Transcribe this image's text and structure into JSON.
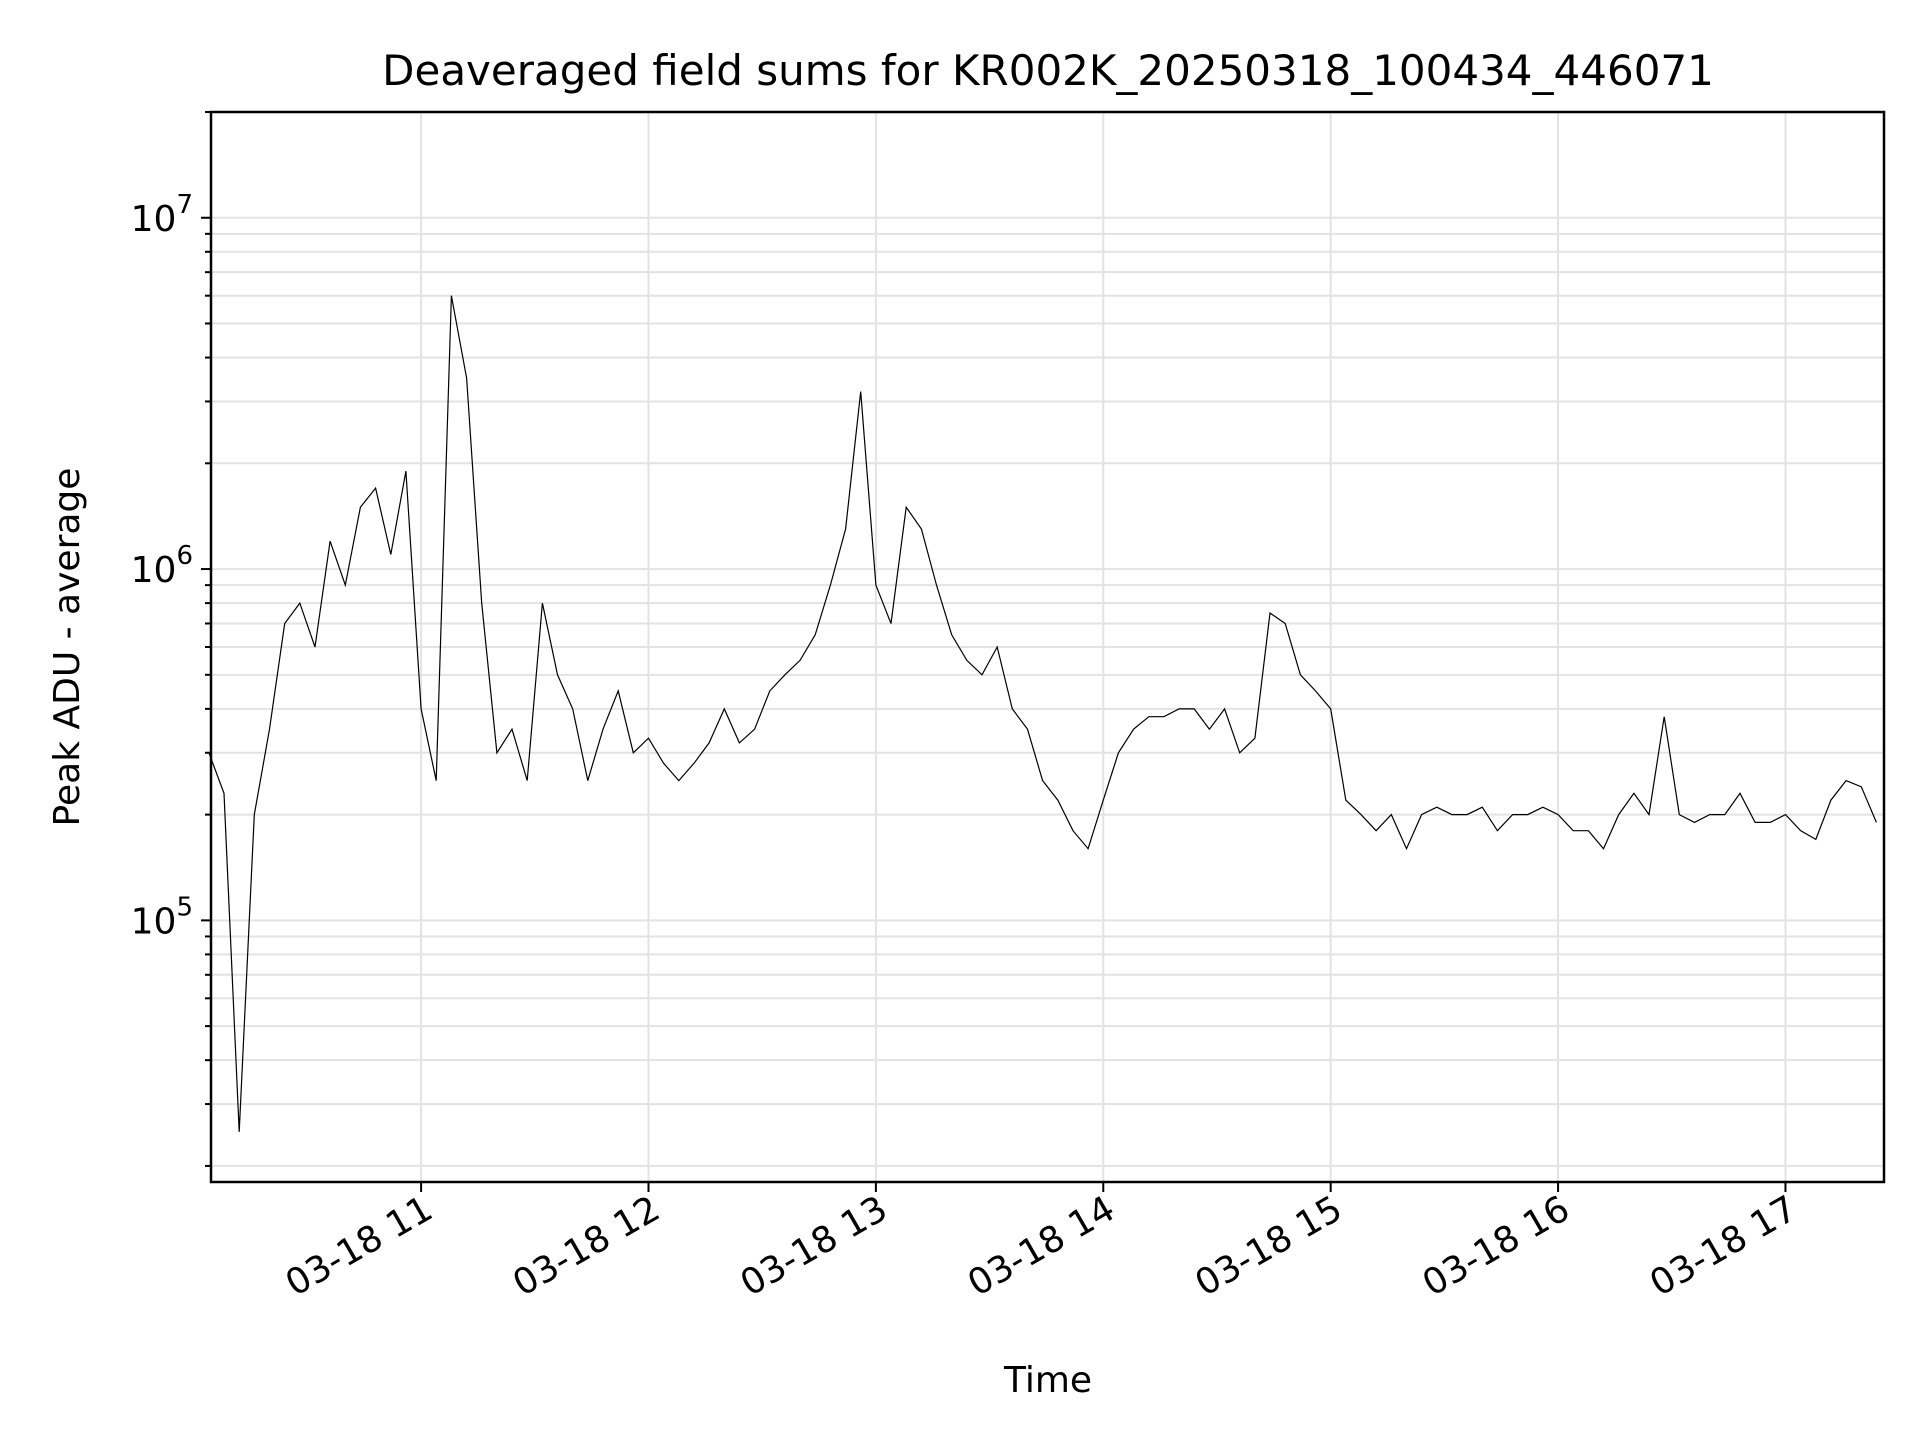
{
  "chart_data": {
    "type": "line",
    "title": "Deaveraged field sums for KR002K_20250318_100434_446071",
    "xlabel": "Time",
    "ylabel": "Peak ADU - average",
    "yscale": "log",
    "ylim": [
      18000,
      20000000
    ],
    "xlim": [
      "2025-03-18 10:04:34",
      "2025-03-18 17:26:00"
    ],
    "x_ticks": [
      {
        "value": "2025-03-18 11:00",
        "label": "03-18 11"
      },
      {
        "value": "2025-03-18 12:00",
        "label": "03-18 12"
      },
      {
        "value": "2025-03-18 13:00",
        "label": "03-18 13"
      },
      {
        "value": "2025-03-18 14:00",
        "label": "03-18 14"
      },
      {
        "value": "2025-03-18 15:00",
        "label": "03-18 15"
      },
      {
        "value": "2025-03-18 16:00",
        "label": "03-18 16"
      },
      {
        "value": "2025-03-18 17:00",
        "label": "03-18 17"
      }
    ],
    "y_ticks": [
      {
        "value": 100000,
        "base": "10",
        "exp": "5"
      },
      {
        "value": 1000000,
        "base": "10",
        "exp": "6"
      },
      {
        "value": 10000000,
        "base": "10",
        "exp": "7"
      }
    ],
    "grid": true,
    "line_color": "#000000",
    "series": [
      {
        "x": [
          "2025-03-18 10:04",
          "2025-03-18 10:08",
          "2025-03-18 10:12",
          "2025-03-18 10:16",
          "2025-03-18 10:20",
          "2025-03-18 10:24",
          "2025-03-18 10:28",
          "2025-03-18 10:32",
          "2025-03-18 10:36",
          "2025-03-18 10:40",
          "2025-03-18 10:44",
          "2025-03-18 10:48",
          "2025-03-18 10:52",
          "2025-03-18 10:56",
          "2025-03-18 11:00",
          "2025-03-18 11:04",
          "2025-03-18 11:08",
          "2025-03-18 11:12",
          "2025-03-18 11:16",
          "2025-03-18 11:20",
          "2025-03-18 11:24",
          "2025-03-18 11:28",
          "2025-03-18 11:32",
          "2025-03-18 11:36",
          "2025-03-18 11:40",
          "2025-03-18 11:44",
          "2025-03-18 11:48",
          "2025-03-18 11:52",
          "2025-03-18 11:56",
          "2025-03-18 12:00",
          "2025-03-18 12:04",
          "2025-03-18 12:08",
          "2025-03-18 12:12",
          "2025-03-18 12:16",
          "2025-03-18 12:20",
          "2025-03-18 12:24",
          "2025-03-18 12:28",
          "2025-03-18 12:32",
          "2025-03-18 12:36",
          "2025-03-18 12:40",
          "2025-03-18 12:44",
          "2025-03-18 12:48",
          "2025-03-18 12:52",
          "2025-03-18 12:56",
          "2025-03-18 13:00",
          "2025-03-18 13:04",
          "2025-03-18 13:08",
          "2025-03-18 13:12",
          "2025-03-18 13:16",
          "2025-03-18 13:20",
          "2025-03-18 13:24",
          "2025-03-18 13:28",
          "2025-03-18 13:32",
          "2025-03-18 13:36",
          "2025-03-18 13:40",
          "2025-03-18 13:44",
          "2025-03-18 13:48",
          "2025-03-18 13:52",
          "2025-03-18 13:56",
          "2025-03-18 14:00",
          "2025-03-18 14:04",
          "2025-03-18 14:08",
          "2025-03-18 14:12",
          "2025-03-18 14:16",
          "2025-03-18 14:20",
          "2025-03-18 14:24",
          "2025-03-18 14:28",
          "2025-03-18 14:32",
          "2025-03-18 14:36",
          "2025-03-18 14:40",
          "2025-03-18 14:44",
          "2025-03-18 14:48",
          "2025-03-18 14:52",
          "2025-03-18 14:56",
          "2025-03-18 15:00",
          "2025-03-18 15:04",
          "2025-03-18 15:08",
          "2025-03-18 15:12",
          "2025-03-18 15:16",
          "2025-03-18 15:20",
          "2025-03-18 15:24",
          "2025-03-18 15:28",
          "2025-03-18 15:32",
          "2025-03-18 15:36",
          "2025-03-18 15:40",
          "2025-03-18 15:44",
          "2025-03-18 15:48",
          "2025-03-18 15:52",
          "2025-03-18 15:56",
          "2025-03-18 16:00",
          "2025-03-18 16:04",
          "2025-03-18 16:08",
          "2025-03-18 16:12",
          "2025-03-18 16:16",
          "2025-03-18 16:20",
          "2025-03-18 16:24",
          "2025-03-18 16:28",
          "2025-03-18 16:32",
          "2025-03-18 16:36",
          "2025-03-18 16:40",
          "2025-03-18 16:44",
          "2025-03-18 16:48",
          "2025-03-18 16:52",
          "2025-03-18 16:56",
          "2025-03-18 17:00",
          "2025-03-18 17:04",
          "2025-03-18 17:08",
          "2025-03-18 17:12",
          "2025-03-18 17:16",
          "2025-03-18 17:20",
          "2025-03-18 17:24"
        ],
        "y": [
          300000,
          230000,
          25000,
          200000,
          350000,
          700000,
          800000,
          600000,
          1200000,
          900000,
          1500000,
          1700000,
          1100000,
          1900000,
          400000,
          250000,
          6000000,
          3500000,
          800000,
          300000,
          350000,
          250000,
          800000,
          500000,
          400000,
          250000,
          350000,
          450000,
          300000,
          330000,
          280000,
          250000,
          280000,
          320000,
          400000,
          320000,
          350000,
          450000,
          500000,
          550000,
          650000,
          900000,
          1300000,
          3200000,
          900000,
          700000,
          1500000,
          1300000,
          900000,
          650000,
          550000,
          500000,
          600000,
          400000,
          350000,
          250000,
          220000,
          180000,
          160000,
          220000,
          300000,
          350000,
          380000,
          380000,
          400000,
          400000,
          350000,
          400000,
          300000,
          330000,
          750000,
          700000,
          500000,
          450000,
          400000,
          220000,
          200000,
          180000,
          200000,
          160000,
          200000,
          210000,
          200000,
          200000,
          210000,
          180000,
          200000,
          200000,
          210000,
          200000,
          180000,
          180000,
          160000,
          200000,
          230000,
          200000,
          380000,
          200000,
          190000,
          200000,
          200000,
          230000,
          190000,
          190000,
          200000,
          180000,
          170000,
          220000,
          250000,
          240000,
          190000
        ]
      }
    ]
  }
}
